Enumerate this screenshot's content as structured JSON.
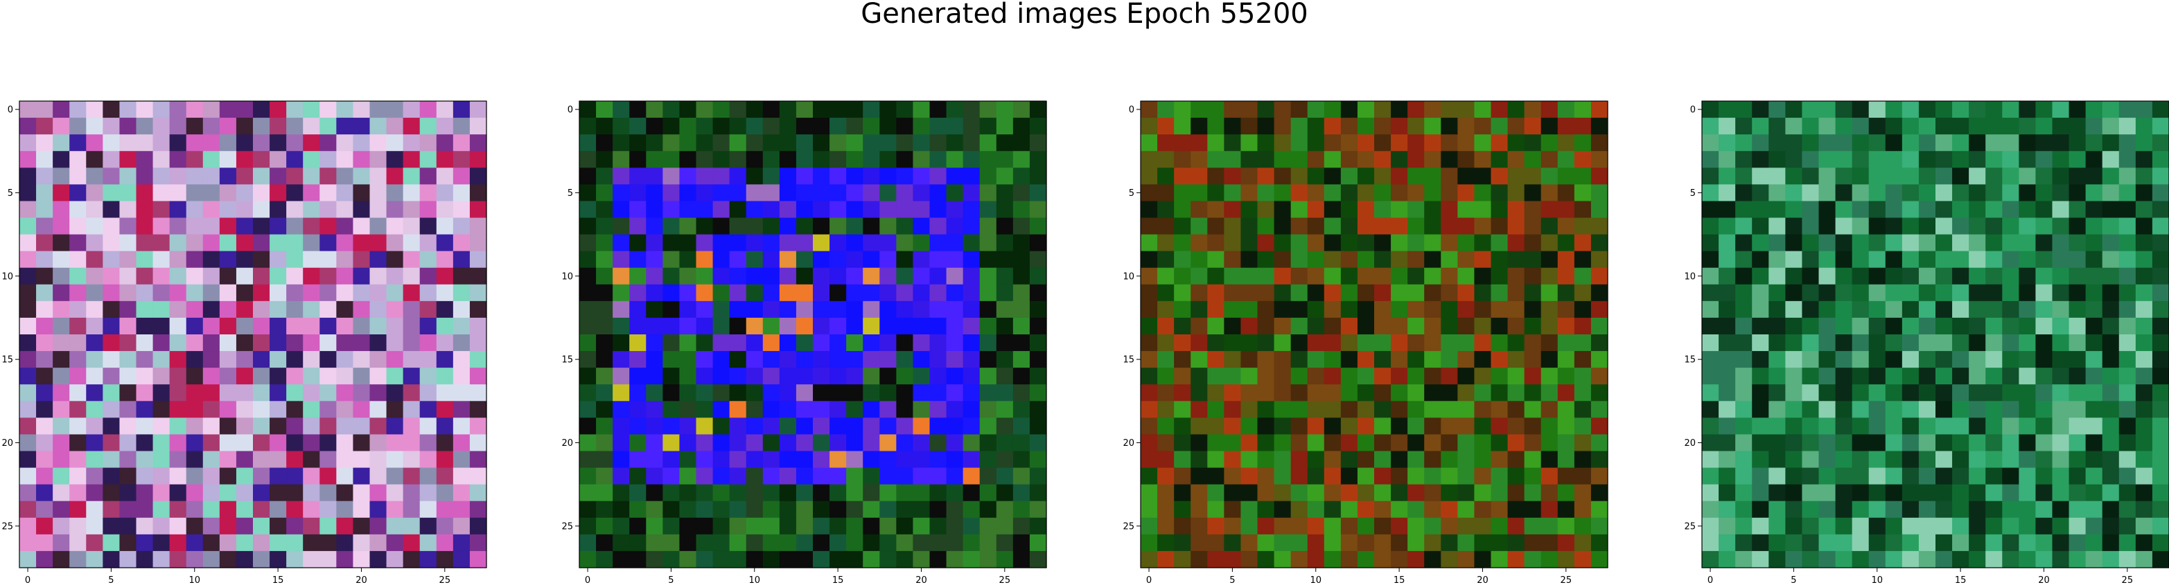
{
  "figure": {
    "title": "Generated images Epoch 55200"
  },
  "chart_data": [
    {
      "type": "heatmap",
      "name": "",
      "size": 28,
      "xlim": [
        -0.5,
        27.5
      ],
      "ylim": [
        27.5,
        -0.5
      ],
      "xticks": [
        0,
        5,
        10,
        15,
        20,
        25
      ],
      "yticks": [
        0,
        5,
        10,
        15,
        20,
        25
      ],
      "palette": [
        "#c9a6d8",
        "#b9b0dc",
        "#e2c7e6",
        "#9f6bb5",
        "#c79ac8",
        "#d45fc0",
        "#7a2f8c",
        "#a0c8cf",
        "#7fd8c0",
        "#2c1a55",
        "#3a1fa0",
        "#c2184f",
        "#f0d0ee",
        "#8a8fb0",
        "#e58fd0",
        "#3a2030",
        "#a83a70",
        "#d8e0f0"
      ],
      "seed": 11
    },
    {
      "type": "heatmap",
      "name": "",
      "size": 28,
      "xlim": [
        -0.5,
        27.5
      ],
      "ylim": [
        27.5,
        -0.5
      ],
      "xticks": [
        0,
        5,
        10,
        15,
        20,
        25
      ],
      "yticks": [
        0,
        5,
        10,
        15,
        20,
        25
      ],
      "palette": [
        "#0b3d12",
        "#1a6a1e",
        "#062608",
        "#2e8f2a",
        "#0c0c0c",
        "#145a3a",
        "#3a7a2a",
        "#0f4f1f",
        "#224422"
      ],
      "motif": {
        "color_palette": [
          "#1a16ff",
          "#2a14f0",
          "#3818e8",
          "#6a2fd0",
          "#1010ff",
          "#4a22ff"
        ],
        "accent": [
          "#f07a2a",
          "#c8c020",
          "#e8903a",
          "#a070c0"
        ]
      },
      "seed": 23
    },
    {
      "type": "heatmap",
      "name": "",
      "size": 28,
      "xlim": [
        -0.5,
        27.5
      ],
      "ylim": [
        27.5,
        -0.5
      ],
      "xticks": [
        0,
        5,
        10,
        15,
        20,
        25
      ],
      "yticks": [
        0,
        5,
        10,
        15,
        20,
        25
      ],
      "palette": [
        "#1f7a12",
        "#3aa020",
        "#0d4a0a",
        "#6a3a10",
        "#8a2010",
        "#5a5a10",
        "#104010",
        "#2a8a2a",
        "#4a2a0a",
        "#0a1a0a",
        "#7a4a12",
        "#b03a10"
      ],
      "seed": 37
    },
    {
      "type": "heatmap",
      "name": "",
      "size": 28,
      "xlim": [
        -0.5,
        27.5
      ],
      "ylim": [
        27.5,
        -0.5
      ],
      "xticks": [
        0,
        5,
        10,
        15,
        20,
        25
      ],
      "yticks": [
        0,
        5,
        10,
        15,
        20,
        25
      ],
      "palette": [
        "#1a8a4a",
        "#0f6a30",
        "#2aa060",
        "#0a4a20",
        "#3ab07a",
        "#10502a",
        "#5ab080",
        "#0a2a18",
        "#2a7a5a",
        "#18703a",
        "#8ad0b0",
        "#062010"
      ],
      "seed": 53
    }
  ]
}
